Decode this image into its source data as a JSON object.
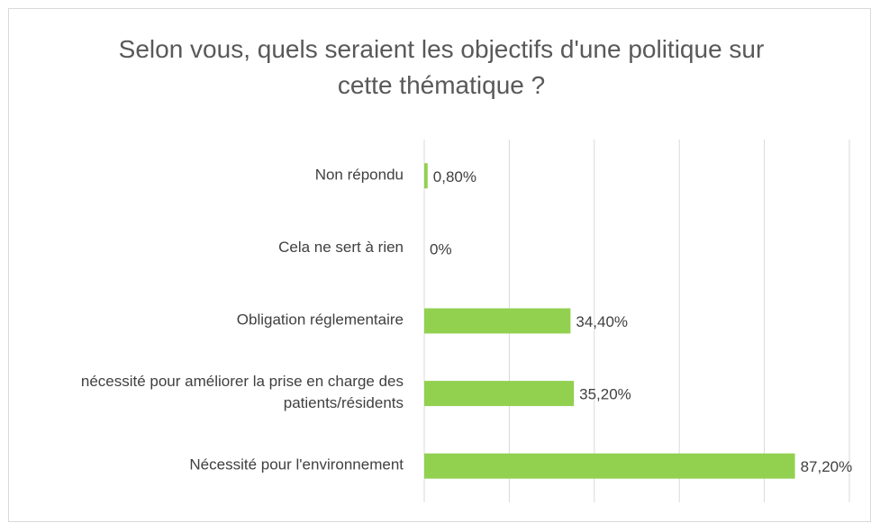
{
  "chart_data": {
    "type": "bar",
    "orientation": "horizontal",
    "title": "Selon vous, quels seraient les objectifs d'une politique sur cette thématique ?",
    "categories": [
      "Non répondu",
      "Cela ne sert à rien",
      "Obligation réglementaire",
      "nécessité pour améliorer la prise en charge des patients/résidents",
      "Nécessité pour l'environnement"
    ],
    "values": [
      0.8,
      0,
      34.4,
      35.2,
      87.2
    ],
    "value_labels": [
      "0,80%",
      "0%",
      "34,40%",
      "35,20%",
      "87,20%"
    ],
    "color": "#92d050",
    "xlim": [
      0,
      100
    ],
    "xticks": [
      0,
      20,
      40,
      60,
      80,
      100
    ],
    "grid": true
  }
}
